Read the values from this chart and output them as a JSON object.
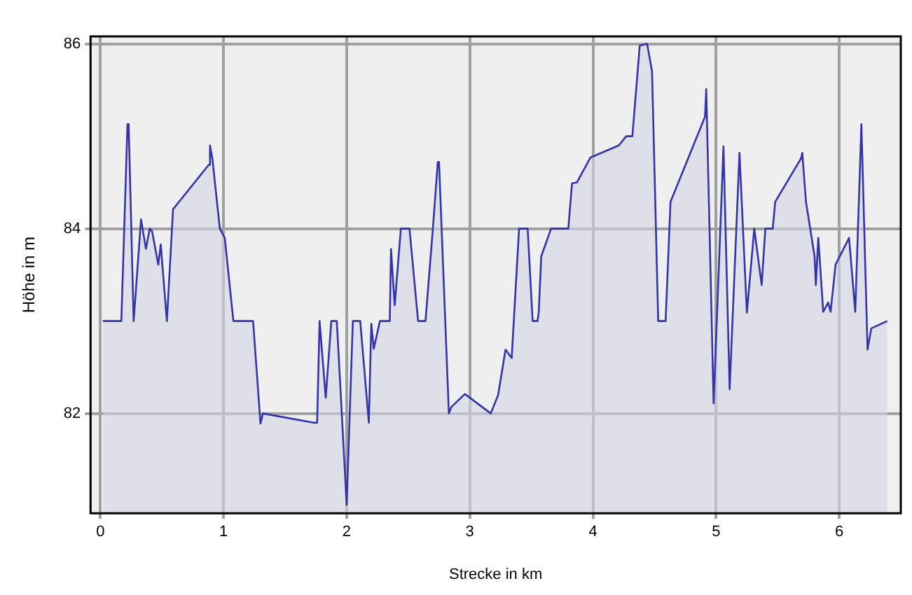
{
  "chart_data": {
    "type": "area",
    "xlabel": "Strecke in km",
    "ylabel": "Höhe in m",
    "xlim": [
      -0.08,
      6.5
    ],
    "xticks": [
      0,
      1,
      2,
      3,
      4,
      5,
      6
    ],
    "ylim": [
      80.92,
      86.08
    ],
    "yticks": [
      82,
      84,
      86
    ],
    "grid": true,
    "legend": false,
    "series": [
      {
        "color": "#3333aa",
        "x": [
          0.02,
          0.17,
          0.22,
          0.23,
          0.27,
          0.33,
          0.37,
          0.4,
          0.42,
          0.47,
          0.49,
          0.54,
          0.59,
          0.88,
          0.89,
          0.91,
          0.97,
          1.01,
          1.08,
          1.24,
          1.3,
          1.32,
          1.73,
          1.76,
          1.78,
          1.83,
          1.875,
          1.92,
          2.0,
          2.05,
          2.11,
          2.18,
          2.2,
          2.22,
          2.27,
          2.35,
          2.36,
          2.39,
          2.44,
          2.51,
          2.58,
          2.64,
          2.7,
          2.74,
          2.75,
          2.83,
          2.85,
          2.96,
          3.17,
          3.23,
          3.29,
          3.34,
          3.4,
          3.47,
          3.51,
          3.55,
          3.56,
          3.58,
          3.66,
          3.8,
          3.83,
          3.87,
          3.98,
          4.21,
          4.27,
          4.32,
          4.38,
          4.44,
          4.48,
          4.53,
          4.59,
          4.63,
          4.91,
          4.92,
          4.98,
          5.06,
          5.11,
          5.19,
          5.25,
          5.31,
          5.37,
          5.4,
          5.46,
          5.48,
          5.69,
          5.7,
          5.73,
          5.8,
          5.81,
          5.83,
          5.87,
          5.91,
          5.93,
          5.97,
          6.08,
          6.13,
          6.18,
          6.23,
          6.26,
          6.39
        ],
        "values": [
          83,
          83,
          85.13,
          85.1,
          83,
          84.1,
          83.78,
          84,
          83.97,
          83.61,
          83.83,
          83,
          84.21,
          84.69,
          84.9,
          84.75,
          84,
          83.9,
          83,
          83,
          81.89,
          82,
          81.9,
          81.9,
          83,
          82.17,
          83,
          83,
          81.01,
          83,
          83,
          81.9,
          82.97,
          82.7,
          83,
          83,
          83.78,
          83.17,
          84,
          84,
          83,
          83,
          84,
          84.72,
          84.72,
          82,
          82.07,
          82.21,
          82,
          82.2,
          82.69,
          82.6,
          84,
          84,
          83,
          83,
          83.1,
          83.7,
          84,
          84,
          84.49,
          84.5,
          84.77,
          84.9,
          85,
          85,
          85.98,
          86,
          85.7,
          83,
          83,
          84.29,
          85.21,
          85.51,
          82.11,
          84.89,
          82.26,
          84.82,
          83.09,
          84,
          83.39,
          84,
          84,
          84.29,
          84.76,
          84.82,
          84.29,
          83.7,
          83.39,
          83.9,
          83.1,
          83.2,
          83.1,
          83.61,
          83.9,
          83.1,
          85.13,
          82.69,
          82.92,
          83
        ]
      }
    ]
  }
}
